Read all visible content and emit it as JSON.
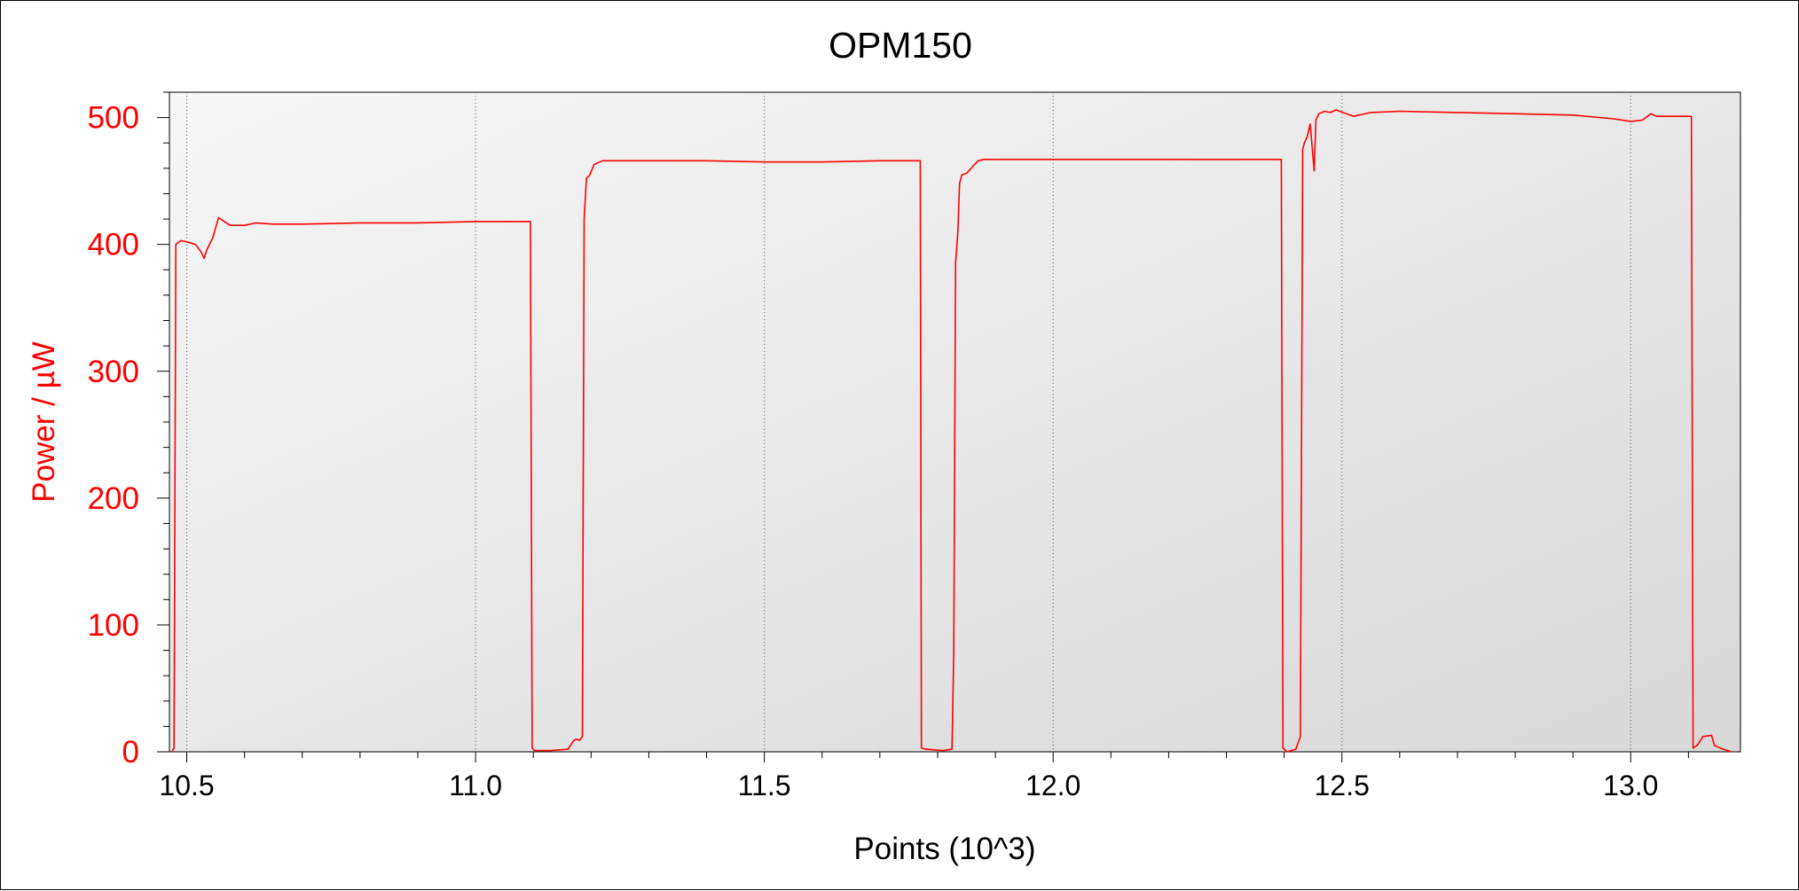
{
  "chart_data": {
    "type": "line",
    "title": "OPM150",
    "xlabel": "Points (10^3)",
    "ylabel": "Power / µW",
    "xlim": [
      10.47,
      13.19
    ],
    "ylim": [
      0,
      520
    ],
    "xticks": [
      10.5,
      11.0,
      11.5,
      12.0,
      12.5,
      13.0
    ],
    "xtick_labels": [
      "10.5",
      "11.0",
      "11.5",
      "12.0",
      "12.5",
      "13.0"
    ],
    "yticks": [
      0,
      100,
      200,
      300,
      400,
      500
    ],
    "ytick_labels": [
      "0",
      "100",
      "200",
      "300",
      "400",
      "500"
    ],
    "grid": "vertical dotted at x ticks",
    "colors": {
      "series": "#ff0000",
      "axis_text_y": "#ff0000",
      "axis_text_x": "#000000"
    },
    "series": [
      {
        "x": [
          10.474,
          10.478,
          10.481,
          10.49,
          10.5,
          10.515,
          10.525,
          10.53,
          10.535,
          10.545,
          10.555,
          10.565,
          10.575,
          10.6,
          10.62,
          10.65,
          10.7,
          10.8,
          10.9,
          11.0,
          11.05,
          11.095,
          11.098,
          11.102,
          11.13,
          11.16,
          11.17,
          11.175,
          11.18,
          11.185,
          11.188,
          11.192,
          11.198,
          11.205,
          11.22,
          11.3,
          11.4,
          11.5,
          11.56,
          11.6,
          11.7,
          11.77,
          11.772,
          11.78,
          11.81,
          11.825,
          11.828,
          11.831,
          11.835,
          11.838,
          11.842,
          11.85,
          11.87,
          11.88,
          11.9,
          12.0,
          12.1,
          12.2,
          12.3,
          12.395,
          12.398,
          12.405,
          12.42,
          12.428,
          12.432,
          12.435,
          12.44,
          12.445,
          12.452,
          12.455,
          12.46,
          12.47,
          12.48,
          12.49,
          12.52,
          12.55,
          12.6,
          12.7,
          12.8,
          12.9,
          12.97,
          13.0,
          13.02,
          13.035,
          13.045,
          13.105,
          13.108,
          13.115,
          13.125,
          13.14,
          13.145,
          13.15,
          13.16,
          13.175
        ],
        "y": [
          0,
          3,
          400,
          403,
          402,
          400,
          394,
          389,
          396,
          405,
          421,
          418,
          415,
          415,
          417,
          416,
          416,
          417,
          417,
          418,
          418,
          418,
          3,
          1,
          1,
          2,
          9,
          10,
          9,
          12,
          420,
          452,
          455,
          463,
          466,
          466,
          466,
          465,
          465,
          465,
          466,
          466,
          3,
          2,
          1,
          2,
          80,
          385,
          410,
          448,
          455,
          456,
          466,
          467,
          467,
          467,
          467,
          467,
          467,
          467,
          3,
          0,
          2,
          12,
          475,
          480,
          485,
          495,
          458,
          498,
          503,
          505,
          504,
          506,
          501,
          504,
          505,
          504,
          503,
          502,
          499,
          497,
          498,
          503,
          501,
          501,
          3,
          5,
          12,
          13,
          5,
          4,
          2,
          0
        ]
      }
    ]
  }
}
